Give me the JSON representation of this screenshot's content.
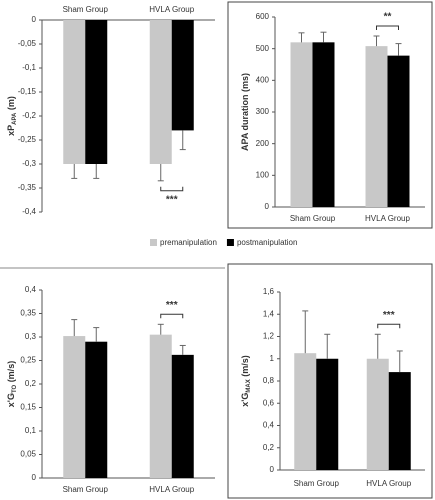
{
  "chart_data": [
    {
      "type": "bar",
      "ylabel": [
        "xP",
        "APA",
        " (m)"
      ],
      "categories": [
        "Sham Group",
        "HVLA Group"
      ],
      "series": [
        {
          "name": "premanipulation",
          "color": "#c8c8c8",
          "values": [
            -0.3,
            -0.3
          ],
          "errors": [
            0.03,
            0.035
          ]
        },
        {
          "name": "postmanipulation",
          "color": "#000000",
          "values": [
            -0.3,
            -0.23
          ],
          "errors": [
            0.03,
            0.04
          ]
        }
      ],
      "ylim": [
        -0.4,
        0
      ],
      "yticks": [
        0,
        {
          "value": -0.05,
          "label": "-0,05"
        },
        {
          "value": -0.1,
          "label": "-0,1"
        },
        {
          "value": -0.15,
          "label": "-0,15"
        },
        {
          "value": -0.2,
          "label": "-0,2"
        },
        {
          "value": -0.25,
          "label": "-0,25"
        },
        {
          "value": -0.3,
          "label": "-0,3"
        },
        {
          "value": -0.35,
          "label": "-0,35"
        },
        {
          "value": -0.4,
          "label": "-0,4"
        }
      ],
      "annotation": "***"
    },
    {
      "type": "bar",
      "ylabel": [
        "APA duration (ms)",
        "",
        ""
      ],
      "categories": [
        "Sham Group",
        "HVLA Group"
      ],
      "series": [
        {
          "color": "#c8c8c8",
          "values": [
            520,
            508
          ],
          "errors": [
            30,
            32
          ]
        },
        {
          "color": "#000000",
          "values": [
            520,
            478
          ],
          "errors": [
            32,
            38
          ]
        }
      ],
      "ylim": [
        0,
        600
      ],
      "yticks": [
        0,
        100,
        200,
        300,
        400,
        500,
        600
      ],
      "annotation": "**"
    },
    {
      "type": "bar",
      "ylabel": [
        "x'G",
        "TO",
        " (m/s)"
      ],
      "categories": [
        "Sham Group",
        "HVLA Group"
      ],
      "series": [
        {
          "color": "#c8c8c8",
          "values": [
            0.302,
            0.305
          ],
          "errors": [
            0.035,
            0.022
          ]
        },
        {
          "color": "#000000",
          "values": [
            0.29,
            0.262
          ],
          "errors": [
            0.03,
            0.02
          ]
        }
      ],
      "ylim": [
        0,
        0.4
      ],
      "yticks": [
        0,
        {
          "value": 0.05,
          "label": "0,05"
        },
        {
          "value": 0.1,
          "label": "0,1"
        },
        {
          "value": 0.15,
          "label": "0,15"
        },
        {
          "value": 0.2,
          "label": "0,2"
        },
        {
          "value": 0.25,
          "label": "0,25"
        },
        {
          "value": 0.3,
          "label": "0,3"
        },
        {
          "value": 0.35,
          "label": "0,35"
        },
        {
          "value": 0.4,
          "label": "0,4"
        }
      ],
      "annotation": "***"
    },
    {
      "type": "bar",
      "ylabel": [
        "x'G",
        "MAX",
        " (m/s)"
      ],
      "categories": [
        "Sham Group",
        "HVLA Group"
      ],
      "series": [
        {
          "color": "#c8c8c8",
          "values": [
            1.05,
            1.0
          ],
          "errors": [
            0.38,
            0.22
          ]
        },
        {
          "color": "#000000",
          "values": [
            1.0,
            0.88
          ],
          "errors": [
            0.22,
            0.19
          ]
        }
      ],
      "ylim": [
        0,
        1.6
      ],
      "yticks": [
        0,
        {
          "value": 0.2,
          "label": "0,2"
        },
        {
          "value": 0.4,
          "label": "0,4"
        },
        {
          "value": 0.6,
          "label": "0,6"
        },
        {
          "value": 0.8,
          "label": "0,8"
        },
        1,
        {
          "value": 1.2,
          "label": "1,2"
        },
        {
          "value": 1.4,
          "label": "1,4"
        },
        {
          "value": 1.6,
          "label": "1,6"
        }
      ],
      "annotation": "***"
    }
  ]
}
